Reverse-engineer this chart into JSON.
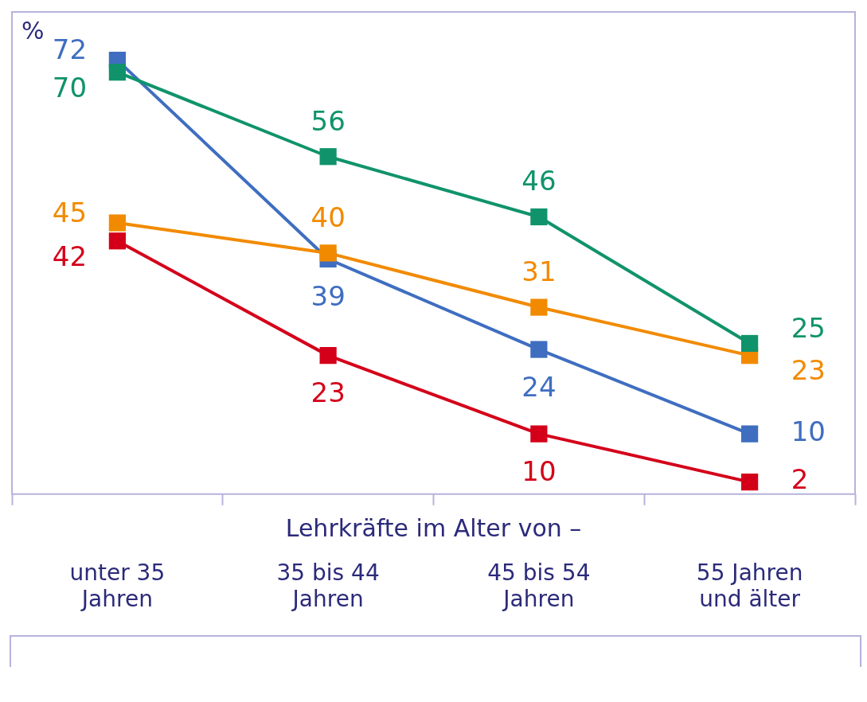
{
  "chart_data": {
    "type": "line",
    "ylabel": "%",
    "xlabel": "Lehrkräfte im Alter von –",
    "categories": [
      "unter 35\nJahren",
      "35 bis 44\nJahren",
      "45 bis 54\nJahren",
      "55 Jahren\nund älter"
    ],
    "series": [
      {
        "color": "#10936b",
        "values": [
          70,
          56,
          46,
          25
        ]
      },
      {
        "color": "#f28a00",
        "values": [
          45,
          40,
          31,
          23
        ]
      },
      {
        "color": "#3f6ec0",
        "values": [
          72,
          39,
          24,
          10
        ]
      },
      {
        "color": "#d4001a",
        "values": [
          42,
          23,
          10,
          2
        ]
      }
    ],
    "data_labels": true,
    "marker": "square",
    "line_style": "solid",
    "grid": false,
    "legend": false,
    "tick_labels": "x"
  }
}
